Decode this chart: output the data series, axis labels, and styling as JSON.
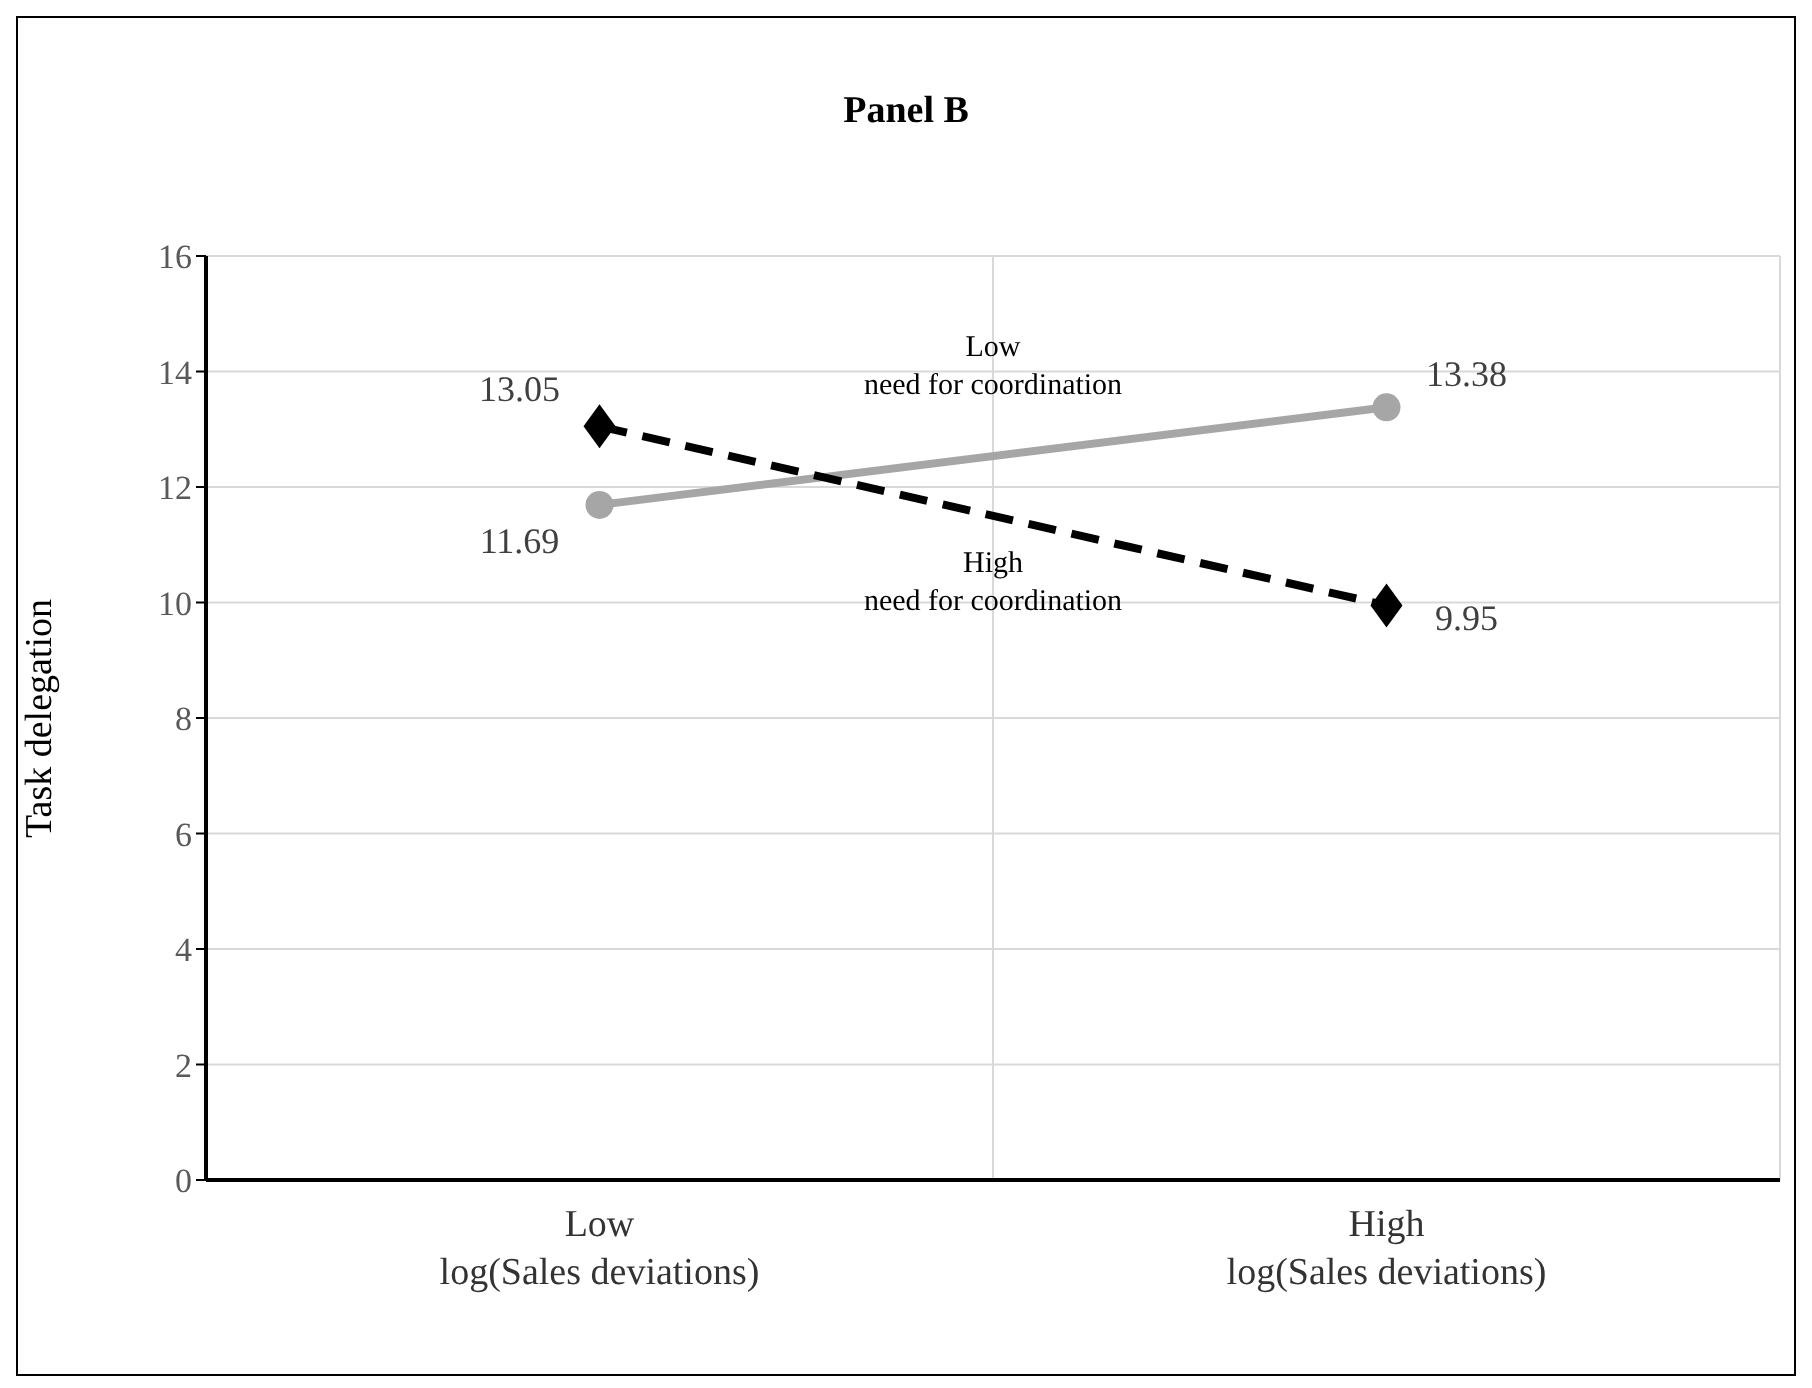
{
  "chart_data": {
    "type": "line",
    "title": "Panel B",
    "ylabel": "Task delegation",
    "categories": [
      "Low log(Sales deviations)",
      "High log(Sales deviations)"
    ],
    "series": [
      {
        "name": "Low need for coordination",
        "color": "#a6a6a6",
        "values": [
          11.69,
          13.38
        ],
        "marker": "circle",
        "line_style": "solid"
      },
      {
        "name": "High need for coordination",
        "color": "#000000",
        "values": [
          13.05,
          9.95
        ],
        "marker": "diamond",
        "line_style": "dashed"
      }
    ],
    "ylim": [
      0,
      16
    ],
    "yticks": [
      0,
      2,
      4,
      6,
      8,
      10,
      12,
      14,
      16
    ],
    "grid": true,
    "data_labels": true
  }
}
